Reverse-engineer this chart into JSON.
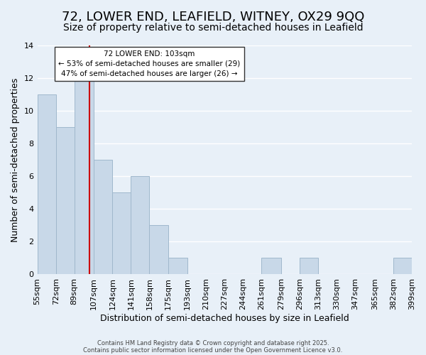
{
  "title": "72, LOWER END, LEAFIELD, WITNEY, OX29 9QQ",
  "subtitle": "Size of property relative to semi-detached houses in Leafield",
  "xlabel": "Distribution of semi-detached houses by size in Leafield",
  "ylabel": "Number of semi-detached properties",
  "bins": [
    55,
    72,
    89,
    107,
    124,
    141,
    158,
    175,
    193,
    210,
    227,
    244,
    261,
    279,
    296,
    313,
    330,
    347,
    365,
    382,
    399
  ],
  "counts": [
    11,
    9,
    12,
    7,
    5,
    6,
    3,
    1,
    0,
    0,
    0,
    0,
    1,
    0,
    1,
    0,
    0,
    0,
    0,
    1
  ],
  "bar_color": "#c8d8e8",
  "bar_edgecolor": "#a0b8cc",
  "reference_line_x": 103,
  "reference_line_color": "#cc0000",
  "ylim": [
    0,
    14
  ],
  "yticks": [
    0,
    2,
    4,
    6,
    8,
    10,
    12,
    14
  ],
  "tick_labels": [
    "55sqm",
    "72sqm",
    "89sqm",
    "107sqm",
    "124sqm",
    "141sqm",
    "158sqm",
    "175sqm",
    "193sqm",
    "210sqm",
    "227sqm",
    "244sqm",
    "261sqm",
    "279sqm",
    "296sqm",
    "313sqm",
    "330sqm",
    "347sqm",
    "365sqm",
    "382sqm",
    "399sqm"
  ],
  "annotation_title": "72 LOWER END: 103sqm",
  "annotation_line1": "← 53% of semi-detached houses are smaller (29)",
  "annotation_line2": "47% of semi-detached houses are larger (26) →",
  "footer1": "Contains HM Land Registry data © Crown copyright and database right 2025.",
  "footer2": "Contains public sector information licensed under the Open Government Licence v3.0.",
  "background_color": "#e8f0f8",
  "plot_background": "#e8f0f8",
  "grid_color": "#ffffff",
  "title_fontsize": 13,
  "subtitle_fontsize": 10,
  "axis_label_fontsize": 9,
  "tick_fontsize": 8,
  "annotation_box_color": "#ffffff",
  "annotation_border_color": "#333333"
}
